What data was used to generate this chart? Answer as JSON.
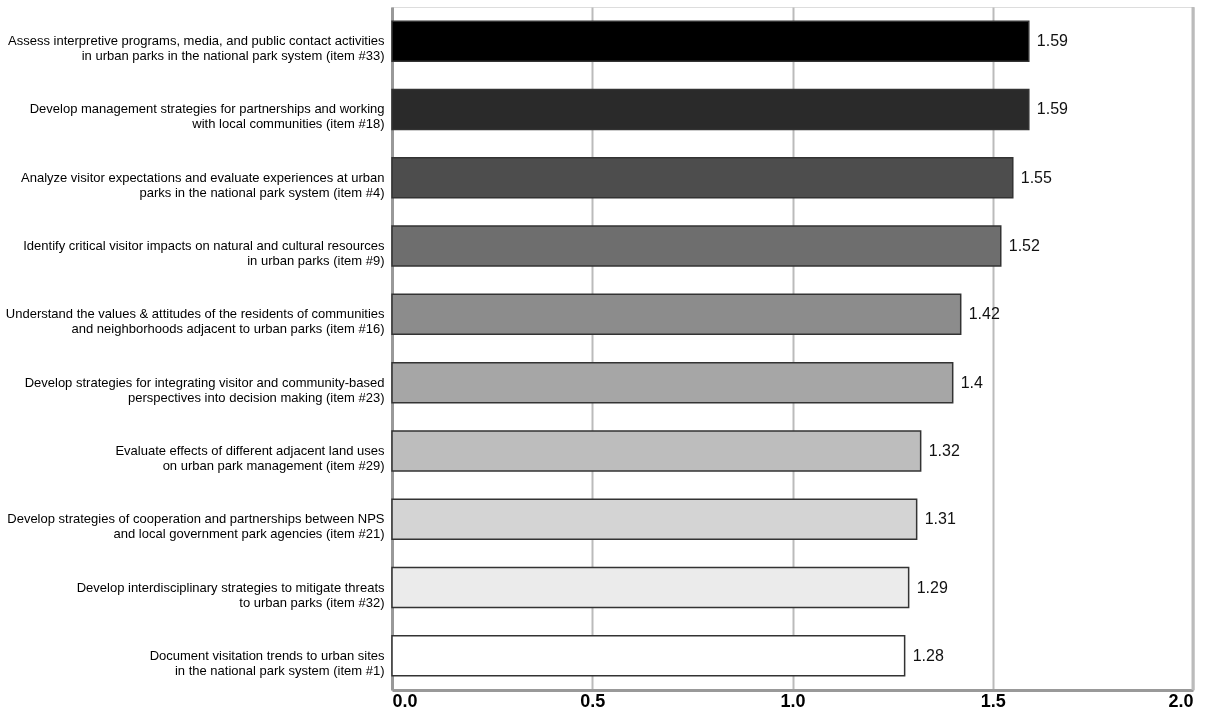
{
  "chart_data": {
    "type": "bar",
    "orientation": "horizontal",
    "categories": [
      "Assess interpretive programs, media, and public contact activities\nin urban parks in the national park system (item #33)",
      "Develop management strategies for partnerships and working\nwith local communities (item #18)",
      "Analyze visitor expectations and evaluate experiences at urban\nparks in the national park system (item #4)",
      "Identify critical visitor impacts on natural and cultural resources\nin urban parks (item #9)",
      "Understand the values & attitudes of the residents of communities\nand neighborhoods adjacent to urban parks (item #16)",
      "Develop strategies for integrating visitor and community-based\nperspectives into decision making (item #23)",
      "Evaluate effects of different adjacent land uses\non urban park management (item #29)",
      "Develop strategies of cooperation and partnerships between NPS\nand local government park agencies (item #21)",
      "Develop interdisciplinary strategies to mitigate threats\nto urban parks (item #32)",
      "Document visitation trends to urban sites\nin the national park system (item #1)"
    ],
    "values": [
      1.59,
      1.59,
      1.55,
      1.52,
      1.42,
      1.4,
      1.32,
      1.31,
      1.29,
      1.28
    ],
    "colors": [
      "#000000",
      "#2a2a2a",
      "#4d4d4d",
      "#6e6e6e",
      "#8c8c8c",
      "#a6a6a6",
      "#bdbdbd",
      "#d4d4d4",
      "#ebebeb",
      "#ffffff"
    ],
    "xlim": [
      0,
      2
    ],
    "xticks": [
      {
        "value": 0,
        "label": "0.0"
      },
      {
        "value": 0.5,
        "label": "0.5"
      },
      {
        "value": 1,
        "label": "1.0"
      },
      {
        "value": 1.5,
        "label": "1.5"
      },
      {
        "value": 2,
        "label": "2.0"
      }
    ],
    "grid": "x",
    "data_labels": true
  }
}
